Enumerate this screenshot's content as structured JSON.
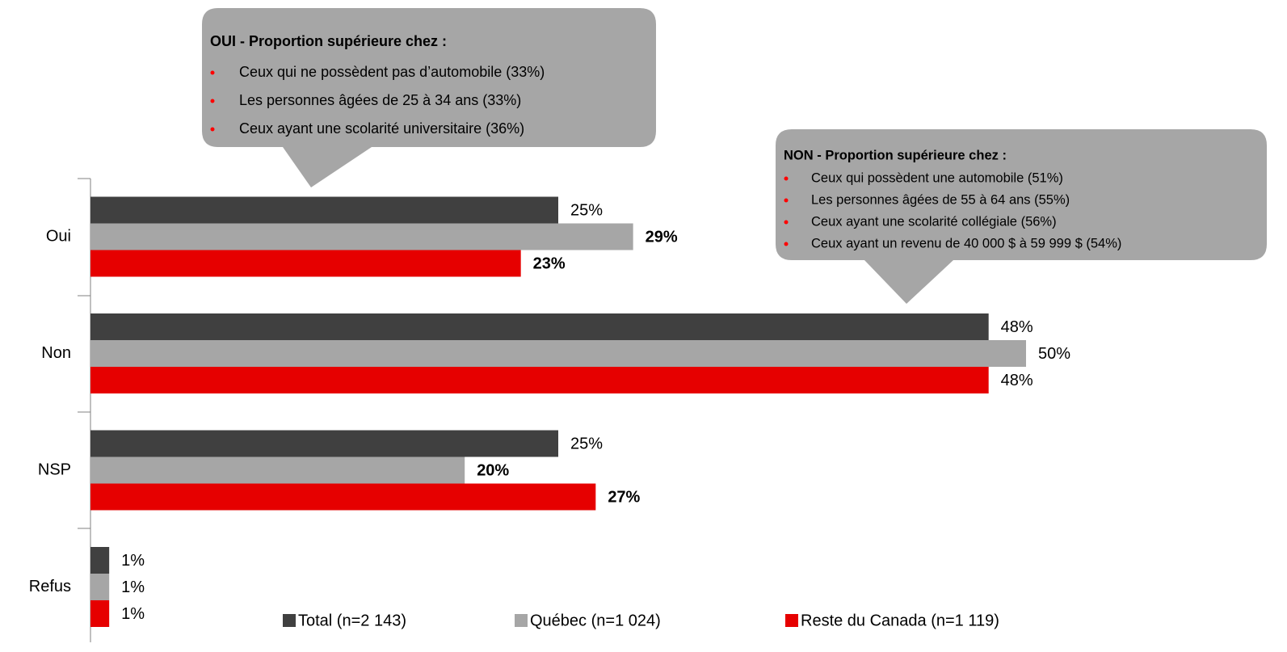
{
  "chart_data": {
    "type": "bar",
    "orientation": "horizontal",
    "categories": [
      "Oui",
      "Non",
      "NSP",
      "Refus"
    ],
    "series": [
      {
        "name": "Total (n=2 143)",
        "color": "#404040",
        "values": [
          25,
          48,
          25,
          1
        ],
        "value_labels": [
          "25%",
          "48%",
          "25%",
          "1%"
        ],
        "value_label_colors": [
          null,
          null,
          null,
          null
        ]
      },
      {
        "name": "Québec (n=1 024)",
        "color": "#a6a6a6",
        "values": [
          29,
          50,
          20,
          1
        ],
        "value_labels": [
          "29%",
          "50%",
          "20%",
          "1%"
        ],
        "value_label_colors": [
          "#00b050",
          null,
          "#ff0000",
          null
        ]
      },
      {
        "name": "Reste du Canada (n=1 119)",
        "color": "#e60000",
        "values": [
          23,
          48,
          27,
          1
        ],
        "value_labels": [
          "23%",
          "48%",
          "27%",
          "1%"
        ],
        "value_label_colors": [
          "#ff0000",
          null,
          "#00b050",
          null
        ]
      }
    ],
    "annotations": [
      {
        "title": "OUI - Proportion supérieure chez :",
        "items": [
          "Ceux qui ne possèdent pas d’automobile (33%)",
          "Les personnes âgées de 25 à 34 ans (33%)",
          "Ceux ayant une scolarité universitaire (36%)"
        ]
      },
      {
        "title": "NON - Proportion supérieure chez :",
        "items": [
          "Ceux qui possèdent une automobile (51%)",
          "Les personnes âgées de 55 à 64 ans (55%)",
          "Ceux ayant une scolarité collégiale (56%)",
          "Ceux ayant un revenu de 40 000 $ à 59 999 $ (54%)"
        ]
      }
    ],
    "legend": "bottom"
  }
}
